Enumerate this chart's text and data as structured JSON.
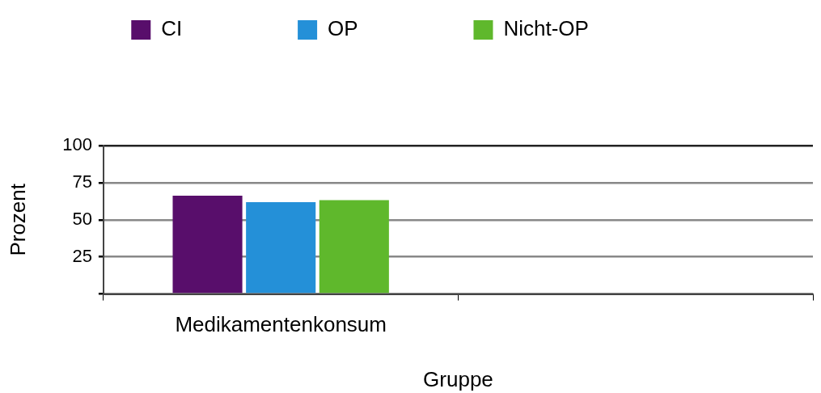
{
  "chart_data": {
    "type": "bar",
    "xlabel": "Gruppe",
    "ylabel": "Prozent",
    "categories": [
      "Medikamentenkonsum",
      null
    ],
    "series": [
      {
        "name": "CI",
        "color": "#580e6b",
        "values": [
          66.2,
          null
        ]
      },
      {
        "name": "OP",
        "color": "#2490d8",
        "values": [
          61.9,
          null
        ]
      },
      {
        "name": "Nicht-OP",
        "color": "#5fb82c",
        "values": [
          63.3,
          null
        ]
      }
    ],
    "ylim": [
      0,
      100
    ],
    "yticks": [
      {
        "value": 0,
        "label": null
      },
      25,
      50,
      75,
      100
    ],
    "grid": "y",
    "legend": "top"
  }
}
